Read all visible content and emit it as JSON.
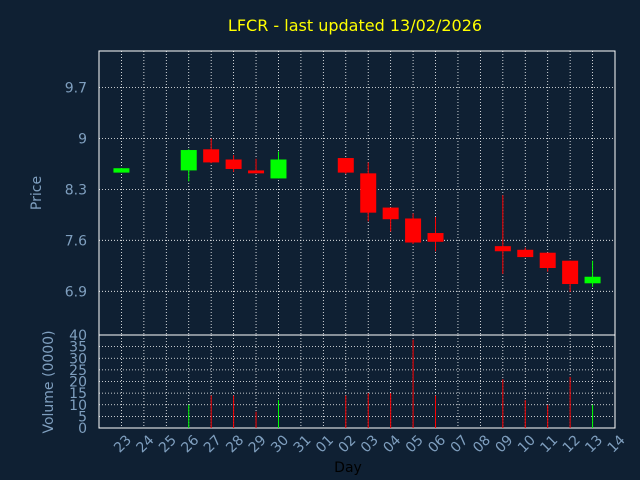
{
  "chart_data": {
    "type": "candlestick",
    "title": "LFCR - last updated 13/02/2026",
    "xlabel": "Day",
    "ylabel_price": "Price",
    "ylabel_volume": "Volume (0000)",
    "x_ticks": [
      "23",
      "24",
      "25",
      "26",
      "27",
      "28",
      "29",
      "30",
      "31",
      "01",
      "02",
      "03",
      "04",
      "05",
      "06",
      "07",
      "08",
      "09",
      "10",
      "11",
      "12",
      "13",
      "14"
    ],
    "price_ticks": [
      "9.7",
      "9",
      "8.3",
      "7.6",
      "6.9"
    ],
    "price_tick_values": [
      9.7,
      9.0,
      8.3,
      7.6,
      6.9
    ],
    "price_range": [
      6.3,
      10.2
    ],
    "volume_ticks": [
      "40",
      "35",
      "30",
      "25",
      "20",
      "15",
      "10",
      "5",
      "0"
    ],
    "volume_tick_values": [
      40,
      35,
      30,
      25,
      20,
      15,
      10,
      5,
      0
    ],
    "volume_range": [
      0,
      40
    ],
    "up_color": "#00ff00",
    "down_color": "#ff0000",
    "background": "#0f2033",
    "grid": true,
    "candles": [
      {
        "day": "23",
        "open": 8.53,
        "close": 8.59,
        "high": 8.59,
        "low": 8.53,
        "volume": 0
      },
      {
        "day": "26",
        "open": 8.56,
        "close": 8.84,
        "high": 8.85,
        "low": 8.41,
        "volume": 10
      },
      {
        "day": "27",
        "open": 8.85,
        "close": 8.67,
        "high": 9.0,
        "low": 8.66,
        "volume": 14
      },
      {
        "day": "28",
        "open": 8.71,
        "close": 8.58,
        "high": 8.77,
        "low": 8.54,
        "volume": 14
      },
      {
        "day": "29",
        "open": 8.56,
        "close": 8.52,
        "high": 8.72,
        "low": 8.52,
        "volume": 7
      },
      {
        "day": "30",
        "open": 8.45,
        "close": 8.71,
        "high": 8.82,
        "low": 8.45,
        "volume": 12
      },
      {
        "day": "02",
        "open": 8.73,
        "close": 8.53,
        "high": 8.73,
        "low": 8.51,
        "volume": 14
      },
      {
        "day": "03",
        "open": 8.52,
        "close": 7.98,
        "high": 8.67,
        "low": 7.86,
        "volume": 15
      },
      {
        "day": "04",
        "open": 8.05,
        "close": 7.89,
        "high": 8.05,
        "low": 7.72,
        "volume": 15
      },
      {
        "day": "05",
        "open": 7.9,
        "close": 7.57,
        "high": 7.97,
        "low": 7.55,
        "volume": 38
      },
      {
        "day": "06",
        "open": 7.7,
        "close": 7.58,
        "high": 7.92,
        "low": 7.45,
        "volume": 14
      },
      {
        "day": "09",
        "open": 7.52,
        "close": 7.45,
        "high": 8.22,
        "low": 7.14,
        "volume": 21
      },
      {
        "day": "10",
        "open": 7.47,
        "close": 7.37,
        "high": 7.5,
        "low": 7.37,
        "volume": 12
      },
      {
        "day": "11",
        "open": 7.43,
        "close": 7.22,
        "high": 7.43,
        "low": 7.17,
        "volume": 10
      },
      {
        "day": "12",
        "open": 7.32,
        "close": 7.0,
        "high": 7.32,
        "low": 6.89,
        "volume": 22
      },
      {
        "day": "13",
        "open": 7.01,
        "close": 7.1,
        "high": 7.32,
        "low": 6.96,
        "volume": 10
      }
    ]
  }
}
